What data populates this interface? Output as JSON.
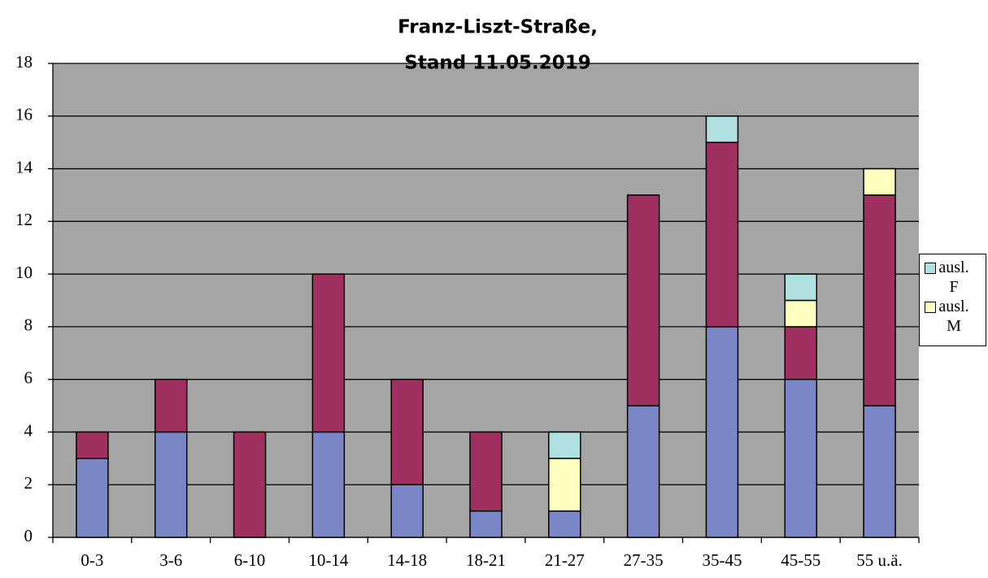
{
  "chart_data": {
    "type": "stacked_bar",
    "title": [
      "Franz-Liszt-Straße,",
      "Stand 11.05.2019"
    ],
    "categories": [
      "0-3",
      "3-6",
      "6-10",
      "10-14",
      "14-18",
      "18-21",
      "21-27",
      "27-35",
      "35-45",
      "45-55",
      "55 u.ä."
    ],
    "series": [
      {
        "color": "#7b86c6",
        "values": [
          3,
          4,
          0,
          4,
          2,
          1,
          1,
          5,
          8,
          6,
          5
        ]
      },
      {
        "color": "#a0305f",
        "values": [
          1,
          2,
          4,
          6,
          4,
          3,
          0,
          8,
          7,
          2,
          8
        ]
      },
      {
        "name": "ausl. M",
        "color": "#ffffc0",
        "values": [
          0,
          0,
          0,
          0,
          0,
          0,
          2,
          0,
          0,
          1,
          1
        ]
      },
      {
        "name": "ausl. F",
        "color": "#b0e0e0",
        "values": [
          0,
          0,
          0,
          0,
          0,
          0,
          1,
          0,
          1,
          1,
          0
        ]
      }
    ],
    "ylim": [
      0,
      18
    ],
    "yticks": [
      0,
      2,
      4,
      6,
      8,
      10,
      12,
      14,
      16,
      18
    ],
    "grid": true,
    "legend": "right"
  }
}
